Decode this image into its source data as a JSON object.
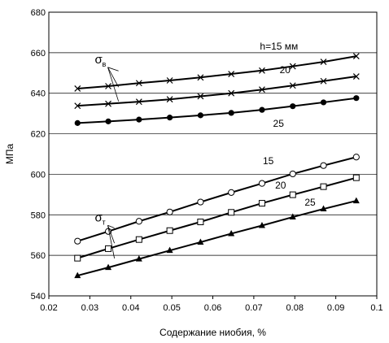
{
  "chart_data": {
    "type": "line",
    "title": "",
    "xlabel": "Содержание ниобия, %",
    "ylabel": "МПа",
    "xlim": [
      0.02,
      0.1
    ],
    "ylim": [
      540,
      680
    ],
    "x_ticks": [
      "0.02",
      "0.03",
      "0.04",
      "0.05",
      "0.06",
      "0.07",
      "0.08",
      "0.09",
      "0.1"
    ],
    "y_ticks": [
      "540",
      "560",
      "580",
      "600",
      "620",
      "640",
      "660",
      "680"
    ],
    "grid": true,
    "series": [
      {
        "label": "h=15 мм",
        "marker": "x",
        "x": [
          0.027,
          0.0345,
          0.042,
          0.0495,
          0.057,
          0.0645,
          0.072,
          0.0795,
          0.087,
          0.095
        ],
        "y": [
          642.3,
          643.5,
          645.0,
          646.3,
          647.8,
          649.5,
          651.2,
          653.3,
          655.5,
          658.3
        ]
      },
      {
        "label": "20",
        "marker": "x",
        "x": [
          0.027,
          0.0345,
          0.042,
          0.0495,
          0.057,
          0.0645,
          0.072,
          0.0795,
          0.087,
          0.095
        ],
        "y": [
          633.8,
          634.8,
          635.8,
          637.0,
          638.5,
          640.0,
          641.8,
          643.8,
          646.0,
          648.3
        ]
      },
      {
        "label": "25",
        "marker": "dot",
        "x": [
          0.027,
          0.0345,
          0.042,
          0.0495,
          0.057,
          0.0645,
          0.072,
          0.0795,
          0.087,
          0.095
        ],
        "y": [
          625.3,
          626.1,
          627.0,
          628.0,
          629.1,
          630.3,
          631.8,
          633.6,
          635.5,
          637.6
        ]
      },
      {
        "label": "15",
        "marker": "circle",
        "x": [
          0.027,
          0.0345,
          0.042,
          0.0495,
          0.057,
          0.0645,
          0.072,
          0.0795,
          0.087,
          0.095
        ],
        "y": [
          567.0,
          571.8,
          576.8,
          581.4,
          586.3,
          591.0,
          595.5,
          600.2,
          604.3,
          608.5
        ]
      },
      {
        "label": "20",
        "marker": "square",
        "x": [
          0.027,
          0.0345,
          0.042,
          0.0495,
          0.057,
          0.0645,
          0.072,
          0.0795,
          0.087,
          0.095
        ],
        "y": [
          558.6,
          563.3,
          567.8,
          572.2,
          576.5,
          581.2,
          585.7,
          589.9,
          593.9,
          598.3
        ]
      },
      {
        "label": "25",
        "marker": "triangle",
        "x": [
          0.027,
          0.0345,
          0.042,
          0.0495,
          0.057,
          0.0645,
          0.072,
          0.0795,
          0.087,
          0.095
        ],
        "y": [
          550.0,
          554.0,
          558.2,
          562.4,
          566.5,
          570.7,
          574.7,
          578.9,
          582.9,
          586.9
        ]
      }
    ],
    "annotations": {
      "sigma_b": "σ",
      "sigma_b_sub": "в",
      "sigma_t": "σ",
      "sigma_t_sub": "т",
      "labels": [
        {
          "text": "h=15 мм",
          "x": 0.0715,
          "y": 661.5
        },
        {
          "text": "20",
          "x": 0.0763,
          "y": 650.0
        },
        {
          "text": "25",
          "x": 0.0747,
          "y": 623.5
        },
        {
          "text": "15",
          "x": 0.0722,
          "y": 605.0
        },
        {
          "text": "20",
          "x": 0.0752,
          "y": 593.0
        },
        {
          "text": "25",
          "x": 0.0824,
          "y": 584.5
        }
      ],
      "pointers_b": [
        [
          0.037,
          651.0
        ],
        [
          0.037,
          643.0
        ],
        [
          0.037,
          636.0
        ]
      ],
      "pointers_t": [
        [
          0.036,
          573.5
        ],
        [
          0.036,
          566.0
        ],
        [
          0.036,
          558.5
        ]
      ],
      "sigma_b_anchor": [
        0.033,
        654.0
      ],
      "sigma_t_anchor": [
        0.033,
        576.0
      ]
    }
  }
}
